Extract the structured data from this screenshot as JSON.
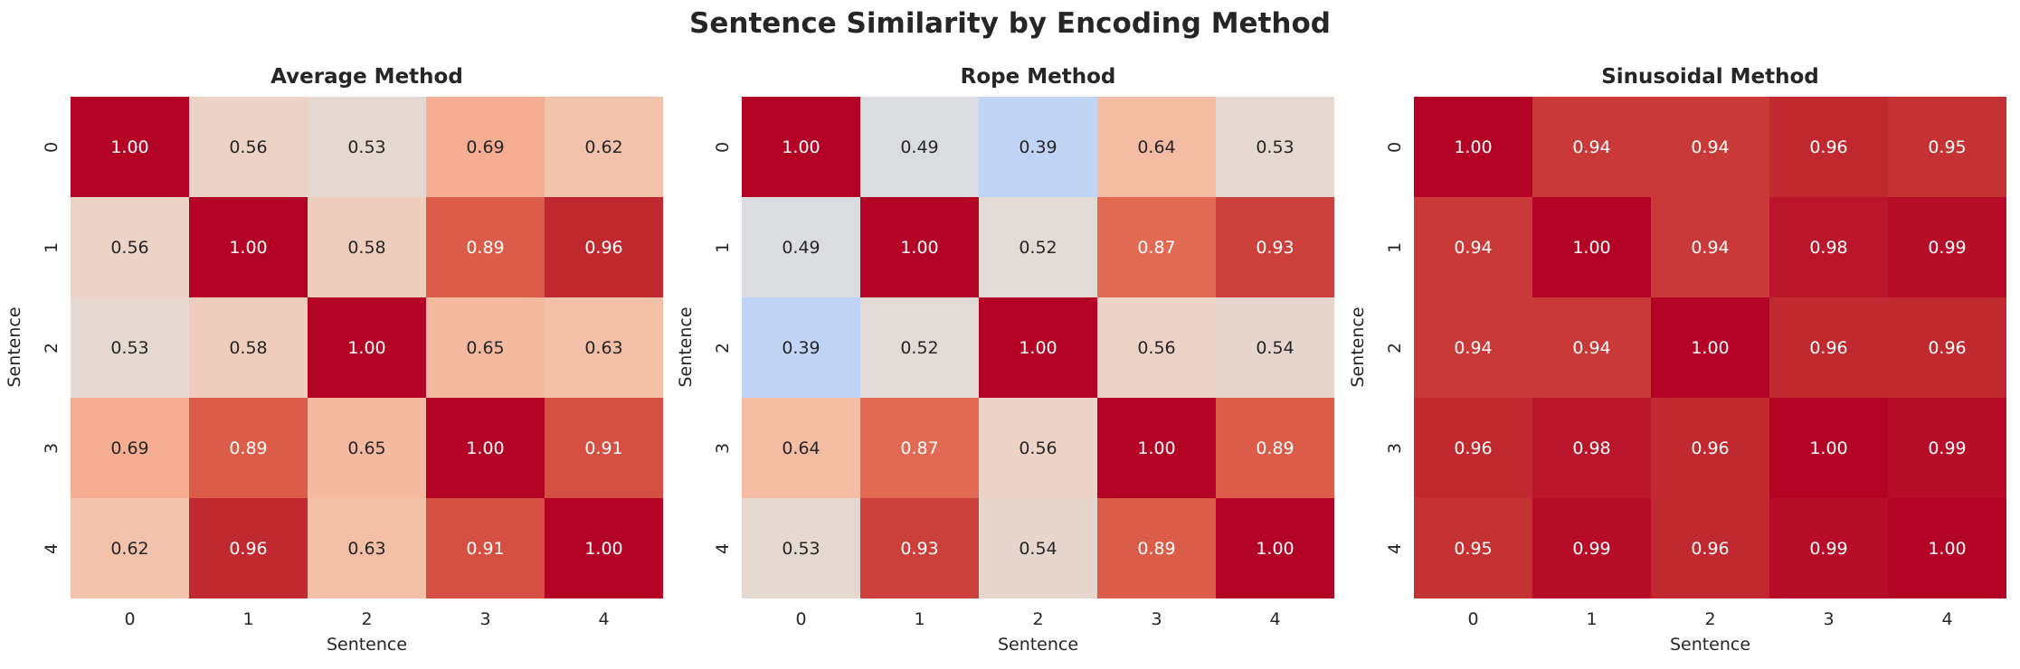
{
  "chart_data": {
    "title": "Sentence Similarity by Encoding Method",
    "type": "heatmap",
    "colormap": "coolwarm",
    "vmin": 0,
    "vmax": 1,
    "panels": [
      {
        "title": "Average Method",
        "xlabel": "Sentence",
        "ylabel": "Sentence",
        "x_ticks": [
          "0",
          "1",
          "2",
          "3",
          "4"
        ],
        "y_ticks": [
          "0",
          "1",
          "2",
          "3",
          "4"
        ],
        "values": [
          [
            1.0,
            0.56,
            0.53,
            0.69,
            0.62
          ],
          [
            0.56,
            1.0,
            0.58,
            0.89,
            0.96
          ],
          [
            0.53,
            0.58,
            1.0,
            0.65,
            0.63
          ],
          [
            0.69,
            0.89,
            0.65,
            1.0,
            0.91
          ],
          [
            0.62,
            0.96,
            0.63,
            0.91,
            1.0
          ]
        ]
      },
      {
        "title": "Rope Method",
        "xlabel": "Sentence",
        "ylabel": "Sentence",
        "x_ticks": [
          "0",
          "1",
          "2",
          "3",
          "4"
        ],
        "y_ticks": [
          "0",
          "1",
          "2",
          "3",
          "4"
        ],
        "values": [
          [
            1.0,
            0.49,
            0.39,
            0.64,
            0.53
          ],
          [
            0.49,
            1.0,
            0.52,
            0.87,
            0.93
          ],
          [
            0.39,
            0.52,
            1.0,
            0.56,
            0.54
          ],
          [
            0.64,
            0.87,
            0.56,
            1.0,
            0.89
          ],
          [
            0.53,
            0.93,
            0.54,
            0.89,
            1.0
          ]
        ]
      },
      {
        "title": "Sinusoidal Method",
        "xlabel": "Sentence",
        "ylabel": "Sentence",
        "x_ticks": [
          "0",
          "1",
          "2",
          "3",
          "4"
        ],
        "y_ticks": [
          "0",
          "1",
          "2",
          "3",
          "4"
        ],
        "values": [
          [
            1.0,
            0.94,
            0.94,
            0.96,
            0.95
          ],
          [
            0.94,
            1.0,
            0.94,
            0.98,
            0.99
          ],
          [
            0.94,
            0.94,
            1.0,
            0.96,
            0.96
          ],
          [
            0.96,
            0.98,
            0.96,
            1.0,
            0.99
          ],
          [
            0.95,
            0.99,
            0.96,
            0.99,
            1.0
          ]
        ]
      }
    ]
  }
}
